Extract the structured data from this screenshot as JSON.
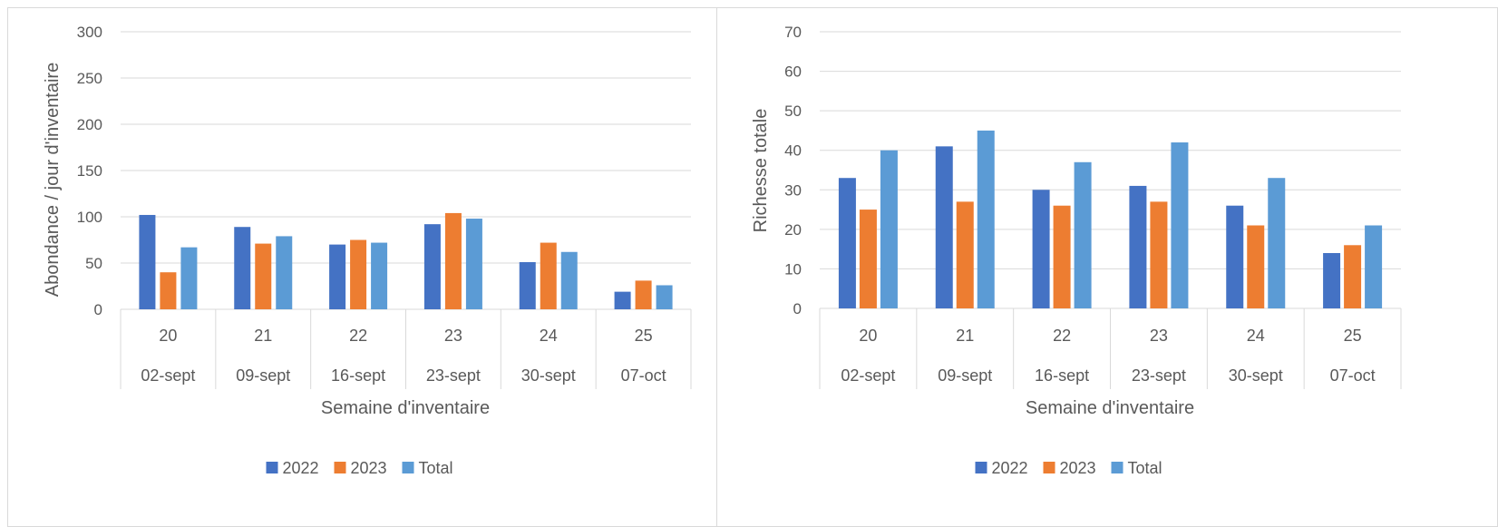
{
  "colors": {
    "2022": "#4472c4",
    "2023": "#ed7d31",
    "Total": "#5b9bd5",
    "grid": "#d9d9d9",
    "text": "#595959"
  },
  "chart_data": [
    {
      "type": "bar",
      "title": "",
      "xlabel": "Semaine d'inventaire",
      "ylabel": "Abondance / jour d'inventaire",
      "ylim": [
        0,
        300
      ],
      "yticks": [
        "0",
        "50",
        "100",
        "150",
        "200",
        "250",
        "300"
      ],
      "categories": [
        "20",
        "21",
        "22",
        "23",
        "24",
        "25"
      ],
      "category_dates": [
        "02-sept",
        "09-sept",
        "16-sept",
        "23-sept",
        "30-sept",
        "07-oct"
      ],
      "grid": true,
      "legend": "bottom",
      "series": [
        {
          "name": "2022",
          "values": [
            102,
            89,
            70,
            92,
            51,
            19
          ]
        },
        {
          "name": "2023",
          "values": [
            40,
            71,
            75,
            104,
            72,
            31
          ]
        },
        {
          "name": "Total",
          "values": [
            67,
            79,
            72,
            98,
            62,
            26
          ]
        }
      ]
    },
    {
      "type": "bar",
      "title": "",
      "xlabel": "Semaine d'inventaire",
      "ylabel": "Richesse totale",
      "ylim": [
        0,
        70
      ],
      "yticks": [
        "0",
        "10",
        "20",
        "30",
        "40",
        "50",
        "60",
        "70"
      ],
      "categories": [
        "20",
        "21",
        "22",
        "23",
        "24",
        "25"
      ],
      "category_dates": [
        "02-sept",
        "09-sept",
        "16-sept",
        "23-sept",
        "30-sept",
        "07-oct"
      ],
      "grid": true,
      "legend": "bottom",
      "series": [
        {
          "name": "2022",
          "values": [
            33,
            41,
            30,
            31,
            26,
            14
          ]
        },
        {
          "name": "2023",
          "values": [
            25,
            27,
            26,
            27,
            21,
            16
          ]
        },
        {
          "name": "Total",
          "values": [
            40,
            45,
            37,
            42,
            33,
            21
          ]
        }
      ]
    }
  ]
}
